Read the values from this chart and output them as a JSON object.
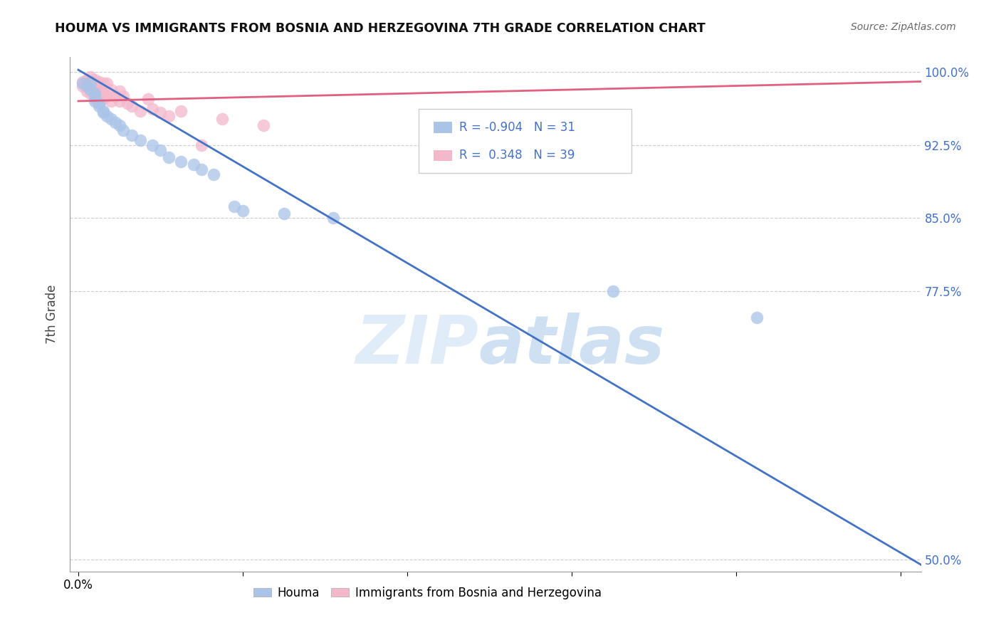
{
  "title": "HOUMA VS IMMIGRANTS FROM BOSNIA AND HERZEGOVINA 7TH GRADE CORRELATION CHART",
  "source": "Source: ZipAtlas.com",
  "ylabel": "7th Grade",
  "xlim": [
    -0.002,
    0.205
  ],
  "ylim": [
    0.488,
    1.015
  ],
  "yticks": [
    1.0,
    0.925,
    0.85,
    0.775,
    0.5
  ],
  "ytick_labels": [
    "100.0%",
    "92.5%",
    "85.0%",
    "77.5%",
    "50.0%"
  ],
  "xtick_val": 0.0,
  "xtick_label": "0.0%",
  "blue_R": -0.904,
  "blue_N": 31,
  "pink_R": 0.348,
  "pink_N": 39,
  "blue_color": "#aac4e8",
  "pink_color": "#f4b8cb",
  "blue_line_color": "#4472c4",
  "pink_line_color": "#e06080",
  "legend_label_blue": "Houma",
  "legend_label_pink": "Immigrants from Bosnia and Herzegovina",
  "watermark_zip": "ZIP",
  "watermark_atlas": "atlas",
  "blue_scatter_x": [
    0.001,
    0.002,
    0.003,
    0.003,
    0.004,
    0.004,
    0.004,
    0.005,
    0.005,
    0.006,
    0.006,
    0.007,
    0.008,
    0.009,
    0.01,
    0.011,
    0.013,
    0.015,
    0.018,
    0.02,
    0.022,
    0.025,
    0.028,
    0.03,
    0.033,
    0.038,
    0.04,
    0.05,
    0.062,
    0.13,
    0.165
  ],
  "blue_scatter_y": [
    0.988,
    0.985,
    0.99,
    0.982,
    0.978,
    0.975,
    0.97,
    0.968,
    0.965,
    0.96,
    0.958,
    0.955,
    0.952,
    0.948,
    0.945,
    0.94,
    0.935,
    0.93,
    0.925,
    0.92,
    0.912,
    0.908,
    0.905,
    0.9,
    0.895,
    0.862,
    0.858,
    0.855,
    0.85,
    0.775,
    0.748
  ],
  "pink_scatter_x": [
    0.001,
    0.001,
    0.002,
    0.002,
    0.002,
    0.003,
    0.003,
    0.003,
    0.003,
    0.004,
    0.004,
    0.004,
    0.004,
    0.004,
    0.005,
    0.005,
    0.005,
    0.006,
    0.006,
    0.006,
    0.007,
    0.007,
    0.008,
    0.008,
    0.009,
    0.01,
    0.01,
    0.011,
    0.012,
    0.013,
    0.015,
    0.017,
    0.018,
    0.02,
    0.022,
    0.025,
    0.03,
    0.035,
    0.045
  ],
  "pink_scatter_y": [
    0.99,
    0.985,
    0.992,
    0.988,
    0.98,
    0.995,
    0.99,
    0.985,
    0.978,
    0.992,
    0.988,
    0.982,
    0.978,
    0.972,
    0.99,
    0.985,
    0.978,
    0.988,
    0.98,
    0.972,
    0.988,
    0.975,
    0.982,
    0.97,
    0.975,
    0.98,
    0.97,
    0.975,
    0.968,
    0.965,
    0.96,
    0.972,
    0.962,
    0.958,
    0.955,
    0.96,
    0.925,
    0.952,
    0.945
  ],
  "blue_line_x0": 0.0,
  "blue_line_y0": 1.002,
  "blue_line_x1": 0.205,
  "blue_line_y1": 0.495,
  "pink_line_x0": 0.0,
  "pink_line_y0": 0.97,
  "pink_line_x1": 0.205,
  "pink_line_y1": 0.99
}
